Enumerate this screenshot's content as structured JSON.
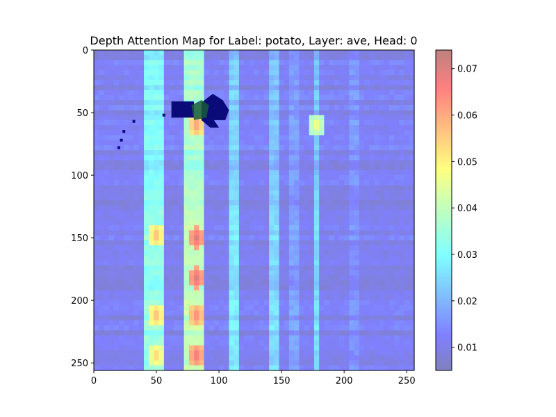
{
  "chart_data": {
    "type": "heatmap",
    "title": "Depth Attention Map for Label: potato, Layer: ave, Head: 0",
    "xlabel": "",
    "ylabel": "",
    "xlim": [
      0,
      256
    ],
    "ylim": [
      256,
      0
    ],
    "x_ticks": [
      0,
      50,
      100,
      150,
      200,
      250
    ],
    "y_ticks": [
      0,
      50,
      100,
      150,
      200,
      250
    ],
    "colormap": "jet",
    "overlay_alpha": 0.5,
    "colorbar": {
      "range": [
        0.005,
        0.074
      ],
      "ticks": [
        0.01,
        0.02,
        0.03,
        0.04,
        0.05,
        0.06,
        0.07
      ],
      "tick_labels": [
        "0.01",
        "0.02",
        "0.03",
        "0.04",
        "0.05",
        "0.06",
        "0.07"
      ]
    },
    "base_value": 0.012,
    "column_bands": [
      {
        "x": [
          40,
          55
        ],
        "value": 0.034
      },
      {
        "x": [
          72,
          87
        ],
        "value": 0.04
      },
      {
        "x": [
          108,
          116
        ],
        "value": 0.028
      },
      {
        "x": [
          140,
          148
        ],
        "value": 0.026
      },
      {
        "x": [
          157,
          162
        ],
        "value": 0.018
      },
      {
        "x": [
          176,
          181
        ],
        "value": 0.026
      },
      {
        "x": [
          205,
          210
        ],
        "value": 0.016
      }
    ],
    "hot_spots": [
      {
        "x": 50,
        "y": 148,
        "value": 0.058
      },
      {
        "x": 50,
        "y": 212,
        "value": 0.058
      },
      {
        "x": 50,
        "y": 244,
        "value": 0.055
      },
      {
        "x": 82,
        "y": 60,
        "value": 0.062
      },
      {
        "x": 82,
        "y": 150,
        "value": 0.07
      },
      {
        "x": 82,
        "y": 182,
        "value": 0.07
      },
      {
        "x": 82,
        "y": 212,
        "value": 0.065
      },
      {
        "x": 82,
        "y": 244,
        "value": 0.068
      },
      {
        "x": 178,
        "y": 60,
        "value": 0.048
      }
    ],
    "dark_blob": {
      "description": "dark navy object silhouette",
      "x": [
        62,
        112
      ],
      "y": [
        30,
        62
      ],
      "color": "#0a0a78"
    },
    "dots": [
      {
        "x": 32,
        "y": 57
      },
      {
        "x": 56,
        "y": 52
      },
      {
        "x": 24,
        "y": 65
      },
      {
        "x": 22,
        "y": 72
      },
      {
        "x": 20,
        "y": 78
      }
    ]
  }
}
